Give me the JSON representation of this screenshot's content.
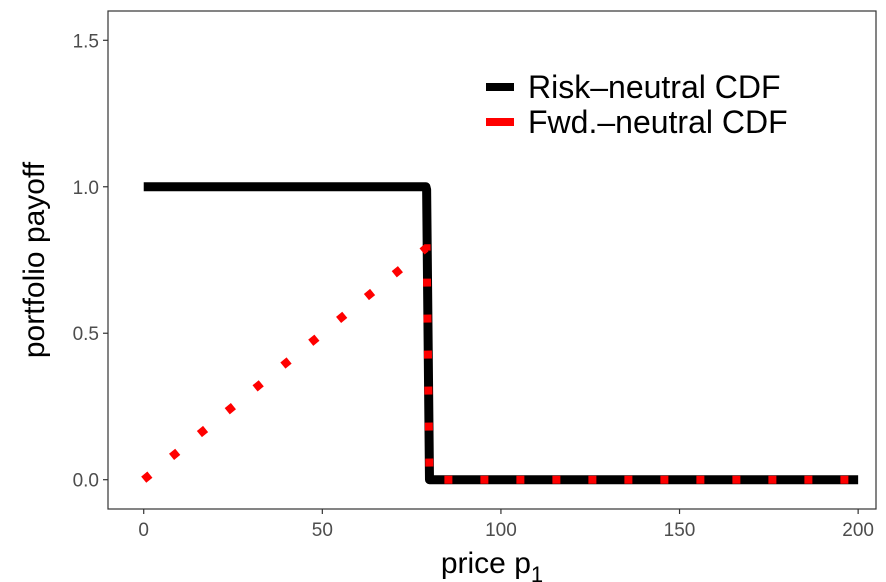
{
  "chart_data": {
    "type": "line",
    "title": "",
    "xlabel": "price p",
    "xlabel_subscript": "1",
    "ylabel": "portfolio payoff",
    "xlim": [
      -10,
      205
    ],
    "ylim": [
      -0.1,
      1.6
    ],
    "x_ticks": [
      0,
      50,
      100,
      150,
      200
    ],
    "x_tick_labels": [
      "0",
      "50",
      "100",
      "150",
      "200"
    ],
    "y_ticks": [
      0,
      0.5,
      1,
      1.5
    ],
    "y_tick_labels": [
      "0.0",
      "0.5",
      "1.0",
      "1.5"
    ],
    "grid": false,
    "legend_position": "top-right",
    "series": [
      {
        "name": "Risk–neutral CDF",
        "color": "#000000",
        "style": "solid",
        "x": [
          0,
          79,
          79.2,
          80,
          200
        ],
        "y": [
          1,
          1,
          0.99,
          0,
          0
        ]
      },
      {
        "name": "Fwd.–neutral CDF",
        "color": "#ff0000",
        "style": "dotted",
        "x": [
          0,
          79,
          79.2,
          80,
          200
        ],
        "y": [
          0,
          0.79,
          0.79,
          0,
          0
        ]
      }
    ]
  }
}
